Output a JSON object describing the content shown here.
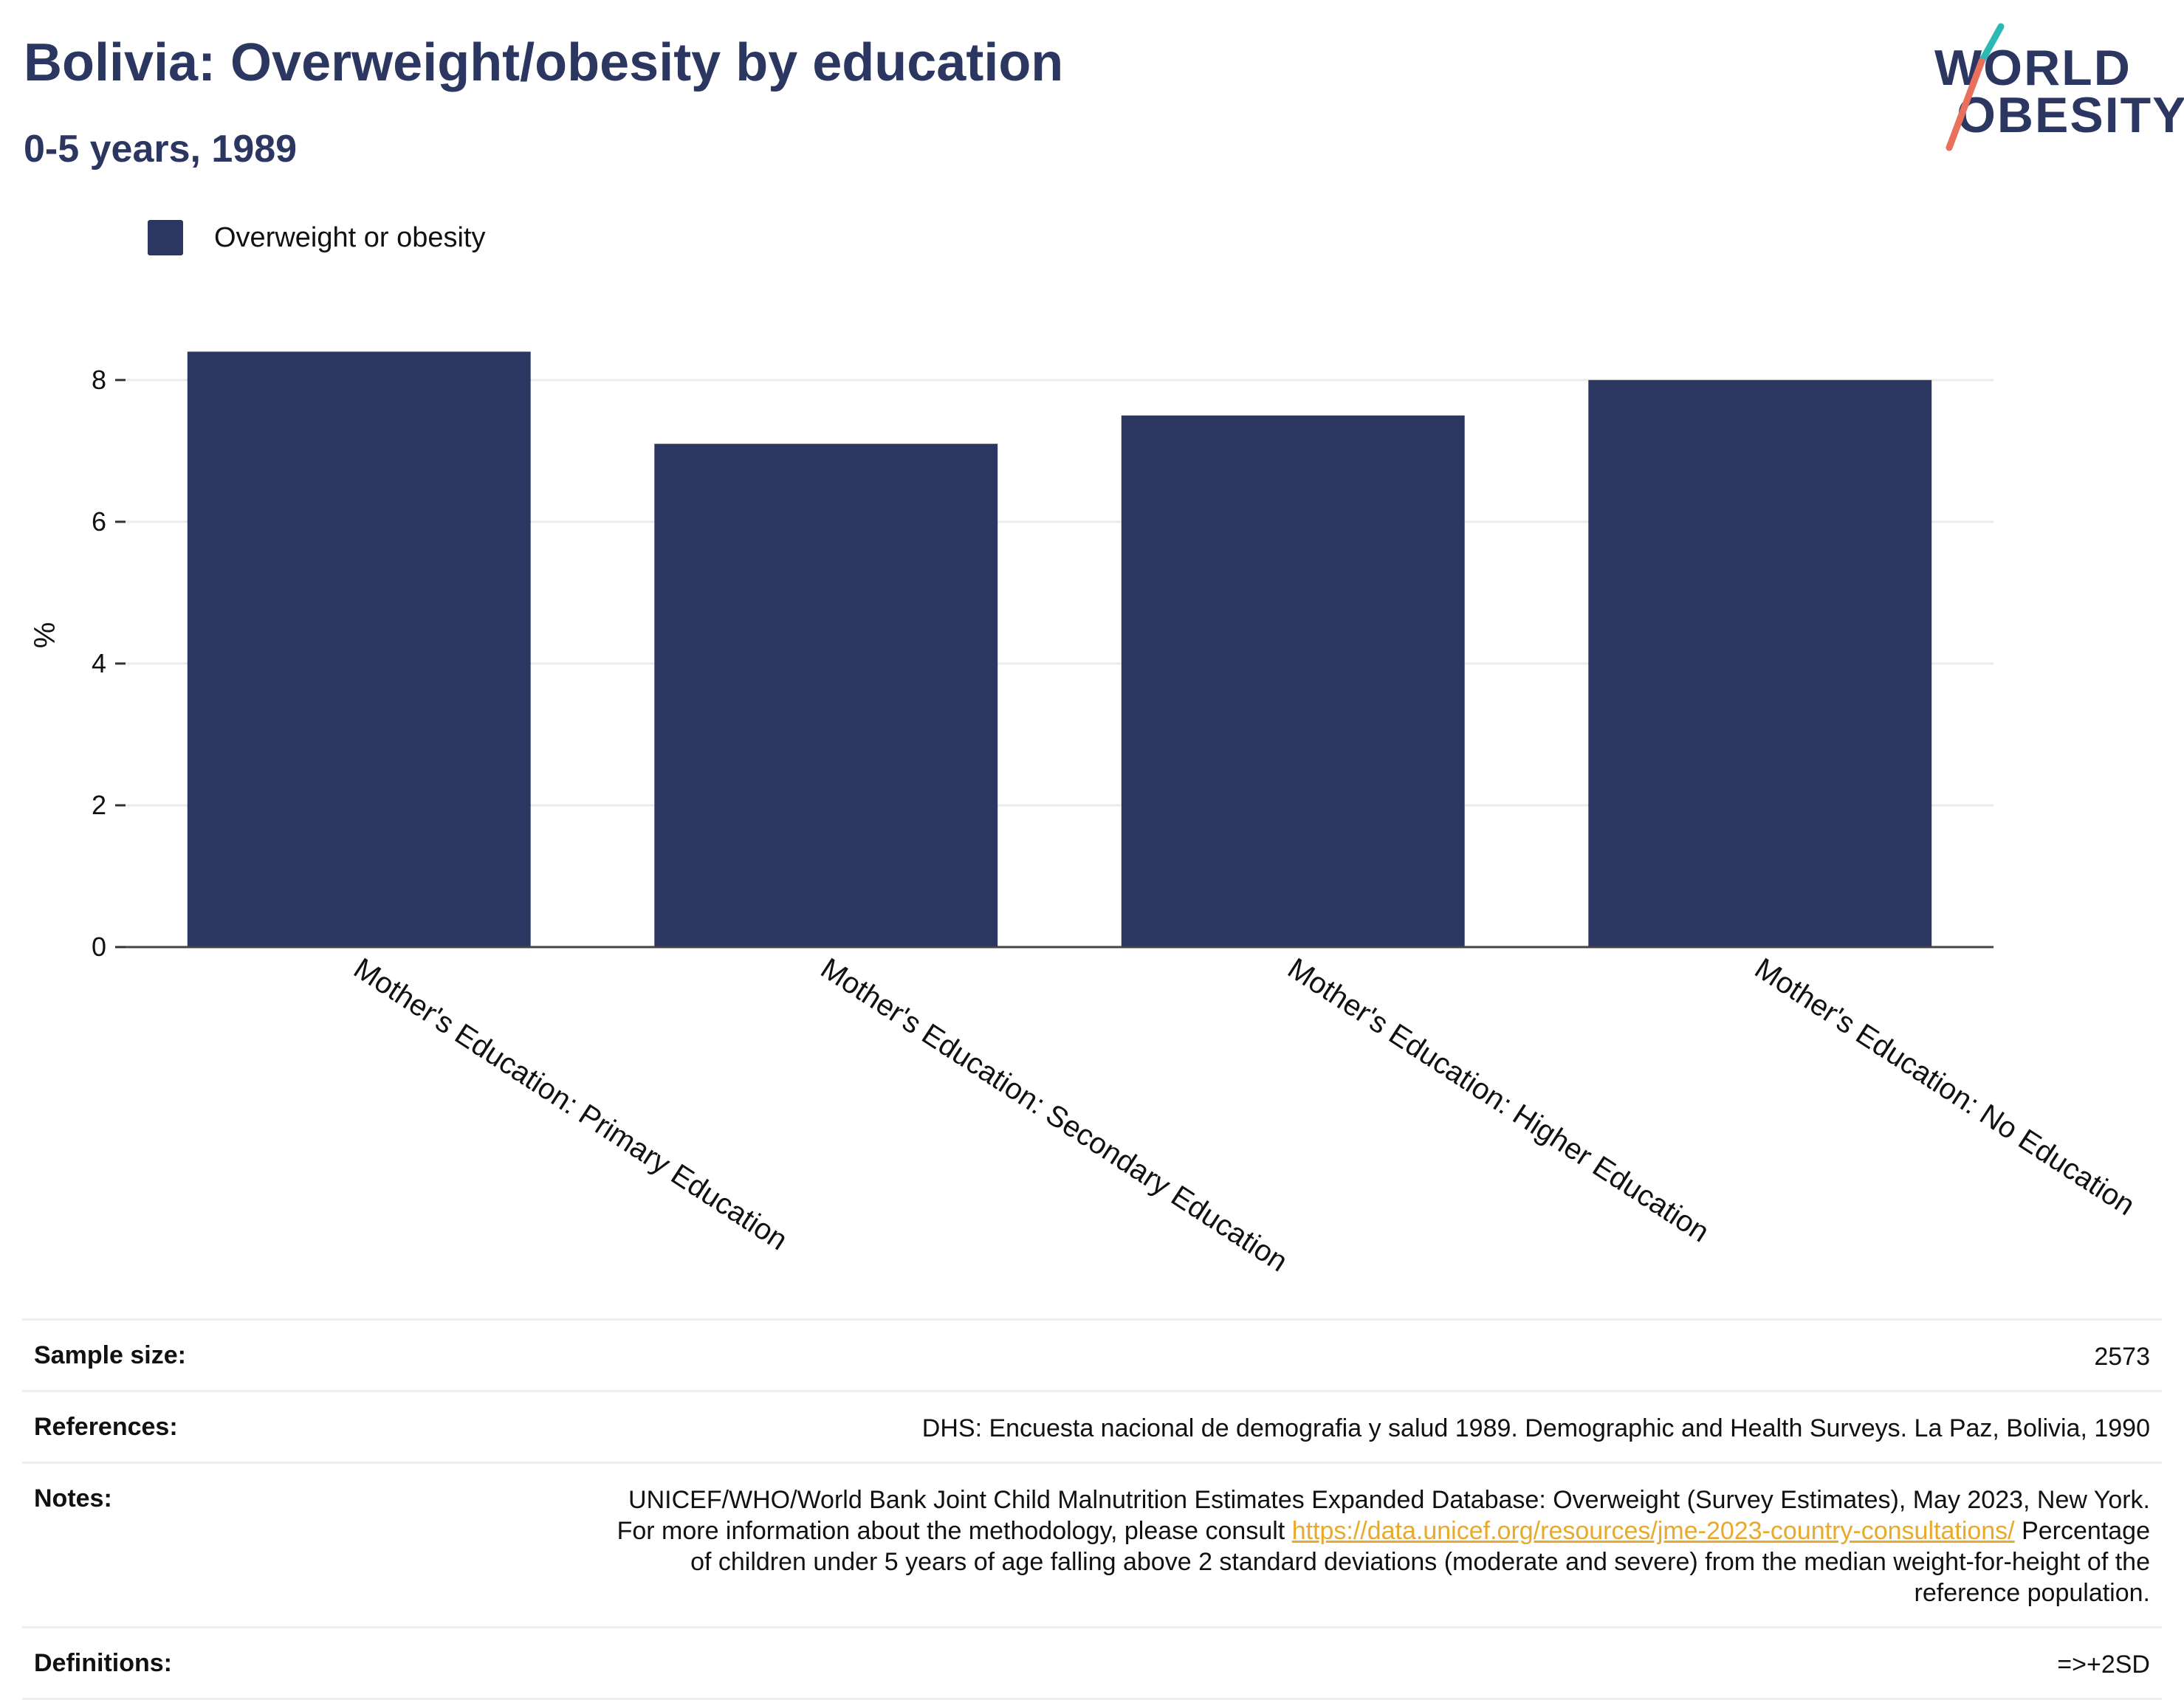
{
  "header": {
    "title": "Bolivia: Overweight/obesity by education",
    "subtitle": "0-5 years, 1989"
  },
  "logo": {
    "line1": "WORLD",
    "line2": "OBESITY",
    "colors": {
      "text": "#2b3661",
      "slash_top": "#2ab9b4",
      "slash_bottom": "#e8705c"
    }
  },
  "legend": {
    "label": "Overweight or obesity",
    "color": "#2b3661"
  },
  "chart_data": {
    "type": "bar",
    "categories": [
      "Mother's Education: Primary Education",
      "Mother's Education: Secondary Education",
      "Mother's Education: Higher Education",
      "Mother's Education: No Education"
    ],
    "series": [
      {
        "name": "Overweight or obesity",
        "values": [
          8.4,
          7.1,
          7.5,
          8.0
        ],
        "color": "#2b3661"
      }
    ],
    "ylabel": "%",
    "xlabel": "",
    "ylim": [
      0,
      8.8
    ],
    "yticks": [
      0,
      2,
      4,
      6,
      8
    ],
    "grid": true,
    "legend_position": "top-left"
  },
  "info": {
    "sample_size": {
      "label": "Sample size:",
      "value": "2573"
    },
    "references": {
      "label": "References:",
      "value": "DHS: Encuesta nacional de demografia y salud 1989. Demographic and Health Surveys. La Paz, Bolivia, 1990"
    },
    "notes": {
      "label": "Notes:",
      "text_before": "UNICEF/WHO/World Bank Joint Child Malnutrition Estimates Expanded Database: Overweight (Survey Estimates), May 2023, New York. For more information about the methodology, please consult ",
      "link": "https://data.unicef.org/resources/jme-2023-country-consultations/",
      "text_after": " Percentage of children under 5 years of age falling above 2 standard deviations (moderate and severe) from the median weight-for-height of the reference population."
    },
    "definitions": {
      "label": "Definitions:",
      "value": "=>+2SD"
    }
  }
}
